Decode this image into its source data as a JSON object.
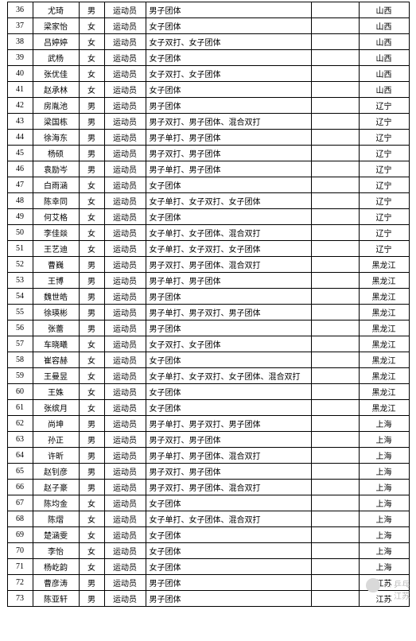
{
  "watermark": {
    "line1": "… 乒乓",
    "line2": "江苏"
  },
  "columns": [
    "no",
    "name",
    "sex",
    "role",
    "event",
    "blank",
    "province"
  ],
  "rows": [
    {
      "no": "36",
      "name": "尤琦",
      "sex": "男",
      "role": "运动员",
      "event": "男子团体",
      "blank": "",
      "province": "山西"
    },
    {
      "no": "37",
      "name": "梁家怡",
      "sex": "女",
      "role": "运动员",
      "event": "女子团体",
      "blank": "",
      "province": "山西"
    },
    {
      "no": "38",
      "name": "吕婷婷",
      "sex": "女",
      "role": "运动员",
      "event": "女子双打、女子团体",
      "blank": "",
      "province": "山西"
    },
    {
      "no": "39",
      "name": "武杨",
      "sex": "女",
      "role": "运动员",
      "event": "女子团体",
      "blank": "",
      "province": "山西"
    },
    {
      "no": "40",
      "name": "张优佳",
      "sex": "女",
      "role": "运动员",
      "event": "女子双打、女子团体",
      "blank": "",
      "province": "山西"
    },
    {
      "no": "41",
      "name": "赵承林",
      "sex": "女",
      "role": "运动员",
      "event": "女子团体",
      "blank": "",
      "province": "山西"
    },
    {
      "no": "42",
      "name": "房胤池",
      "sex": "男",
      "role": "运动员",
      "event": "男子团体",
      "blank": "",
      "province": "辽宁"
    },
    {
      "no": "43",
      "name": "梁国栋",
      "sex": "男",
      "role": "运动员",
      "event": "男子双打、男子团体、混合双打",
      "blank": "",
      "province": "辽宁"
    },
    {
      "no": "44",
      "name": "徐海东",
      "sex": "男",
      "role": "运动员",
      "event": "男子单打、男子团体",
      "blank": "",
      "province": "辽宁"
    },
    {
      "no": "45",
      "name": "杨硕",
      "sex": "男",
      "role": "运动员",
      "event": "男子双打、男子团体",
      "blank": "",
      "province": "辽宁"
    },
    {
      "no": "46",
      "name": "袁励岑",
      "sex": "男",
      "role": "运动员",
      "event": "男子单打、男子团体",
      "blank": "",
      "province": "辽宁"
    },
    {
      "no": "47",
      "name": "白雨涵",
      "sex": "女",
      "role": "运动员",
      "event": "女子团体",
      "blank": "",
      "province": "辽宁"
    },
    {
      "no": "48",
      "name": "陈幸同",
      "sex": "女",
      "role": "运动员",
      "event": "女子单打、女子双打、女子团体",
      "blank": "",
      "province": "辽宁"
    },
    {
      "no": "49",
      "name": "何艾格",
      "sex": "女",
      "role": "运动员",
      "event": "女子团体",
      "blank": "",
      "province": "辽宁"
    },
    {
      "no": "50",
      "name": "李佳燚",
      "sex": "女",
      "role": "运动员",
      "event": "女子单打、女子团体、混合双打",
      "blank": "",
      "province": "辽宁"
    },
    {
      "no": "51",
      "name": "王艺迪",
      "sex": "女",
      "role": "运动员",
      "event": "女子单打、女子双打、女子团体",
      "blank": "",
      "province": "辽宁"
    },
    {
      "no": "52",
      "name": "曹巍",
      "sex": "男",
      "role": "运动员",
      "event": "男子双打、男子团体、混合双打",
      "blank": "",
      "province": "黑龙江"
    },
    {
      "no": "53",
      "name": "王博",
      "sex": "男",
      "role": "运动员",
      "event": "男子单打、男子团体",
      "blank": "",
      "province": "黑龙江"
    },
    {
      "no": "54",
      "name": "魏世皓",
      "sex": "男",
      "role": "运动员",
      "event": "男子团体",
      "blank": "",
      "province": "黑龙江"
    },
    {
      "no": "55",
      "name": "徐瑛彬",
      "sex": "男",
      "role": "运动员",
      "event": "男子单打、男子双打、男子团体",
      "blank": "",
      "province": "黑龙江"
    },
    {
      "no": "56",
      "name": "张蕾",
      "sex": "男",
      "role": "运动员",
      "event": "男子团体",
      "blank": "",
      "province": "黑龙江"
    },
    {
      "no": "57",
      "name": "车晓曦",
      "sex": "女",
      "role": "运动员",
      "event": "女子双打、女子团体",
      "blank": "",
      "province": "黑龙江"
    },
    {
      "no": "58",
      "name": "崔容赫",
      "sex": "女",
      "role": "运动员",
      "event": "女子团体",
      "blank": "",
      "province": "黑龙江"
    },
    {
      "no": "59",
      "name": "王曼昱",
      "sex": "女",
      "role": "运动员",
      "event": "女子单打、女子双打、女子团体、混合双打",
      "blank": "",
      "province": "黑龙江"
    },
    {
      "no": "60",
      "name": "王姝",
      "sex": "女",
      "role": "运动员",
      "event": "女子团体",
      "blank": "",
      "province": "黑龙江"
    },
    {
      "no": "61",
      "name": "张缤月",
      "sex": "女",
      "role": "运动员",
      "event": "女子团体",
      "blank": "",
      "province": "黑龙江"
    },
    {
      "no": "62",
      "name": "尚坤",
      "sex": "男",
      "role": "运动员",
      "event": "男子单打、男子双打、男子团体",
      "blank": "",
      "province": "上海"
    },
    {
      "no": "63",
      "name": "孙正",
      "sex": "男",
      "role": "运动员",
      "event": "男子双打、男子团体",
      "blank": "",
      "province": "上海"
    },
    {
      "no": "64",
      "name": "许昕",
      "sex": "男",
      "role": "运动员",
      "event": "男子单打、男子团体、混合双打",
      "blank": "",
      "province": "上海"
    },
    {
      "no": "65",
      "name": "赵钊彦",
      "sex": "男",
      "role": "运动员",
      "event": "男子双打、男子团体",
      "blank": "",
      "province": "上海"
    },
    {
      "no": "66",
      "name": "赵子豪",
      "sex": "男",
      "role": "运动员",
      "event": "男子双打、男子团体、混合双打",
      "blank": "",
      "province": "上海"
    },
    {
      "no": "67",
      "name": "陈均金",
      "sex": "女",
      "role": "运动员",
      "event": "女子团体",
      "blank": "",
      "province": "上海"
    },
    {
      "no": "68",
      "name": "陈熠",
      "sex": "女",
      "role": "运动员",
      "event": "女子单打、女子团体、混合双打",
      "blank": "",
      "province": "上海"
    },
    {
      "no": "69",
      "name": "楚涵雯",
      "sex": "女",
      "role": "运动员",
      "event": "女子团体",
      "blank": "",
      "province": "上海"
    },
    {
      "no": "70",
      "name": "李怡",
      "sex": "女",
      "role": "运动员",
      "event": "女子团体",
      "blank": "",
      "province": "上海"
    },
    {
      "no": "71",
      "name": "杨屹韵",
      "sex": "女",
      "role": "运动员",
      "event": "女子团体",
      "blank": "",
      "province": "上海"
    },
    {
      "no": "72",
      "name": "曹彦涛",
      "sex": "男",
      "role": "运动员",
      "event": "男子团体",
      "blank": "",
      "province": "江苏"
    },
    {
      "no": "73",
      "name": "陈亚轩",
      "sex": "男",
      "role": "运动员",
      "event": "男子团体",
      "blank": "",
      "province": "江苏"
    }
  ]
}
